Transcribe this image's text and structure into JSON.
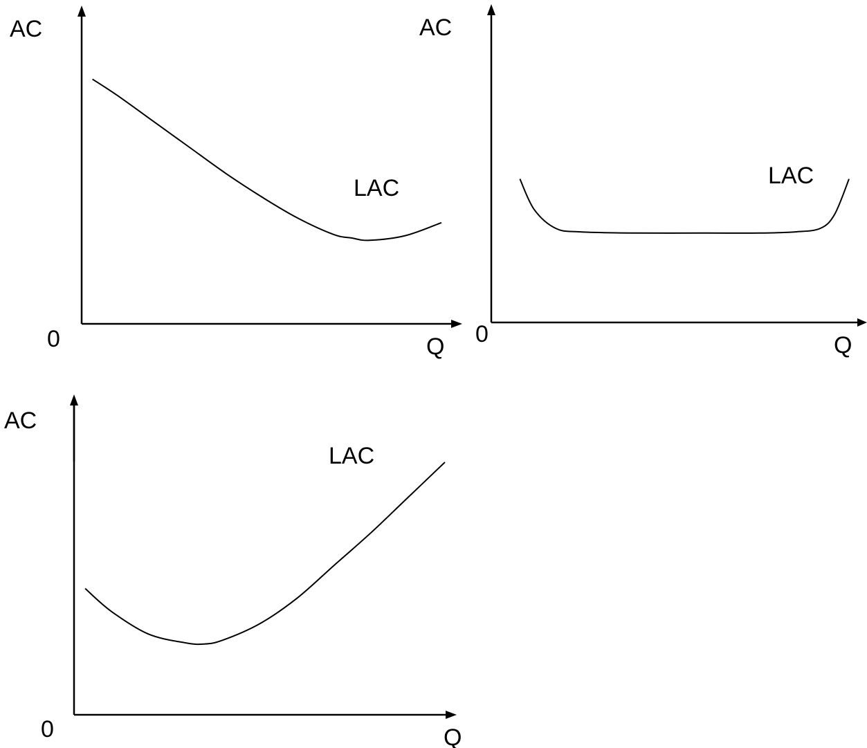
{
  "chart_data": [
    {
      "type": "line",
      "title": "",
      "xlabel": "Q",
      "ylabel": "AC",
      "origin_label": "0",
      "grid": false,
      "series": [
        {
          "name": "LAC",
          "x": [
            0.3,
            1,
            2,
            3,
            4,
            5,
            6,
            7,
            7.5,
            8,
            9,
            10
          ],
          "y": [
            10.4,
            9.7,
            8.6,
            7.5,
            6.4,
            5.4,
            4.5,
            3.8,
            3.65,
            3.55,
            3.75,
            4.3
          ]
        }
      ]
    },
    {
      "type": "line",
      "title": "",
      "xlabel": "Q",
      "ylabel": "AC",
      "origin_label": "0",
      "grid": false,
      "series": [
        {
          "name": "LAC",
          "x": [
            0.8,
            1.2,
            1.8,
            2.5,
            4,
            6,
            7.5,
            8.5,
            9.2,
            9.6,
            10
          ],
          "y": [
            6.1,
            4.8,
            4.0,
            3.85,
            3.8,
            3.8,
            3.8,
            3.85,
            4.0,
            4.6,
            6.1
          ]
        }
      ]
    },
    {
      "type": "line",
      "title": "",
      "xlabel": "Q",
      "ylabel": "AC",
      "origin_label": "0",
      "grid": false,
      "series": [
        {
          "name": "LAC",
          "x": [
            0.3,
            1,
            2,
            3,
            3.5,
            4,
            5,
            6,
            7,
            8,
            9,
            10
          ],
          "y": [
            5.0,
            4.1,
            3.2,
            2.85,
            2.8,
            2.95,
            3.6,
            4.6,
            5.9,
            7.2,
            8.6,
            10.0
          ]
        }
      ]
    }
  ]
}
